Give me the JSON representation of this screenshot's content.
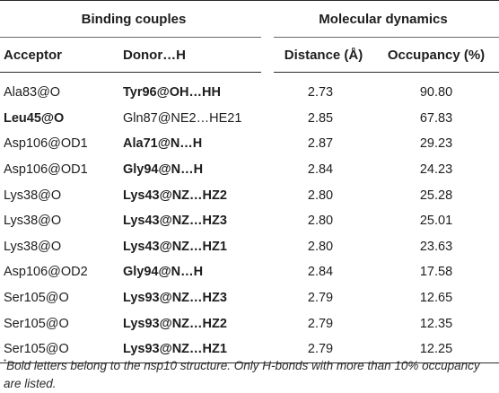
{
  "header": {
    "group_binding": "Binding couples",
    "group_md": "Molecular dynamics",
    "col_acceptor": "Acceptor",
    "col_donor": "Donor…H",
    "col_distance": "Distance (Å)",
    "col_occupancy": "Occupancy (%)"
  },
  "rows": [
    {
      "acceptor": "Ala83@O",
      "acceptor_bold": false,
      "donor": "Tyr96@OH…HH",
      "donor_bold": true,
      "distance": "2.73",
      "occupancy": "90.80"
    },
    {
      "acceptor": "Leu45@O",
      "acceptor_bold": true,
      "donor": "Gln87@NE2…HE21",
      "donor_bold": false,
      "distance": "2.85",
      "occupancy": "67.83"
    },
    {
      "acceptor": "Asp106@OD1",
      "acceptor_bold": false,
      "donor": "Ala71@N…H",
      "donor_bold": true,
      "distance": "2.87",
      "occupancy": "29.23"
    },
    {
      "acceptor": "Asp106@OD1",
      "acceptor_bold": false,
      "donor": "Gly94@N…H",
      "donor_bold": true,
      "distance": "2.84",
      "occupancy": "24.23"
    },
    {
      "acceptor": "Lys38@O",
      "acceptor_bold": false,
      "donor": "Lys43@NZ…HZ2",
      "donor_bold": true,
      "distance": "2.80",
      "occupancy": "25.28"
    },
    {
      "acceptor": "Lys38@O",
      "acceptor_bold": false,
      "donor": "Lys43@NZ…HZ3",
      "donor_bold": true,
      "distance": "2.80",
      "occupancy": "25.01"
    },
    {
      "acceptor": "Lys38@O",
      "acceptor_bold": false,
      "donor": "Lys43@NZ…HZ1",
      "donor_bold": true,
      "distance": "2.80",
      "occupancy": "23.63"
    },
    {
      "acceptor": "Asp106@OD2",
      "acceptor_bold": false,
      "donor": "Gly94@N…H",
      "donor_bold": true,
      "distance": "2.84",
      "occupancy": "17.58"
    },
    {
      "acceptor": "Ser105@O",
      "acceptor_bold": false,
      "donor": "Lys93@NZ…HZ3",
      "donor_bold": true,
      "distance": "2.79",
      "occupancy": "12.65"
    },
    {
      "acceptor": "Ser105@O",
      "acceptor_bold": false,
      "donor": "Lys93@NZ…HZ2",
      "donor_bold": true,
      "distance": "2.79",
      "occupancy": "12.35"
    },
    {
      "acceptor": "Ser105@O",
      "acceptor_bold": false,
      "donor": "Lys93@NZ…HZ1",
      "donor_bold": true,
      "distance": "2.79",
      "occupancy": "12.25"
    }
  ],
  "footnote": {
    "marker": "*",
    "text": "Bold letters belong to the nsp10 structure. Only H-bonds with more than 10% occupancy are listed."
  }
}
